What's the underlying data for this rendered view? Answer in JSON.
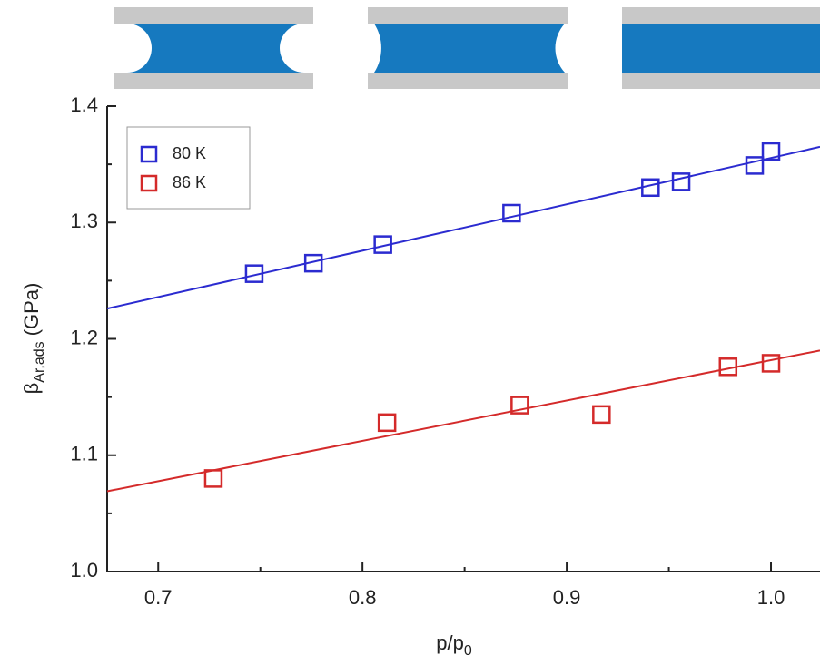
{
  "chart_data": {
    "type": "scatter",
    "x_label": {
      "main": "p/p",
      "subscript": "0"
    },
    "y_label": {
      "symbol": "β",
      "subscript": "Ar,ads",
      "unit": "(GPa)"
    },
    "xlim": [
      0.675,
      1.024
    ],
    "ylim": [
      1.0,
      1.4
    ],
    "xticks": [
      0.7,
      0.8,
      0.9,
      {
        "value": 1,
        "label": "1.0"
      }
    ],
    "yticks": [
      {
        "value": 1,
        "label": "1.0"
      },
      1.1,
      1.2,
      1.3,
      1.4
    ],
    "xminorticks": [
      0.75,
      0.85,
      0.95
    ],
    "yminorticks": [
      1.05,
      1.15,
      1.25,
      1.35
    ],
    "legend": "upper left",
    "series": [
      {
        "name": "80 K",
        "color": "#2b2bd0",
        "x": [
          0.747,
          0.776,
          0.81,
          0.873,
          0.941,
          0.956,
          0.992,
          1.0
        ],
        "values": [
          1.256,
          1.265,
          1.281,
          1.308,
          1.33,
          1.335,
          1.349,
          1.361
        ],
        "fit": {
          "x": [
            0.675,
            1.024
          ],
          "values": [
            1.226,
            1.365
          ]
        }
      },
      {
        "name": "86 K",
        "color": "#d42a2a",
        "x": [
          0.727,
          0.812,
          0.877,
          0.917,
          0.979,
          1.0
        ],
        "values": [
          1.08,
          1.128,
          1.143,
          1.135,
          1.176,
          1.179
        ],
        "fit": {
          "x": [
            0.675,
            1.024
          ],
          "values": [
            1.069,
            1.19
          ]
        }
      }
    ]
  }
}
